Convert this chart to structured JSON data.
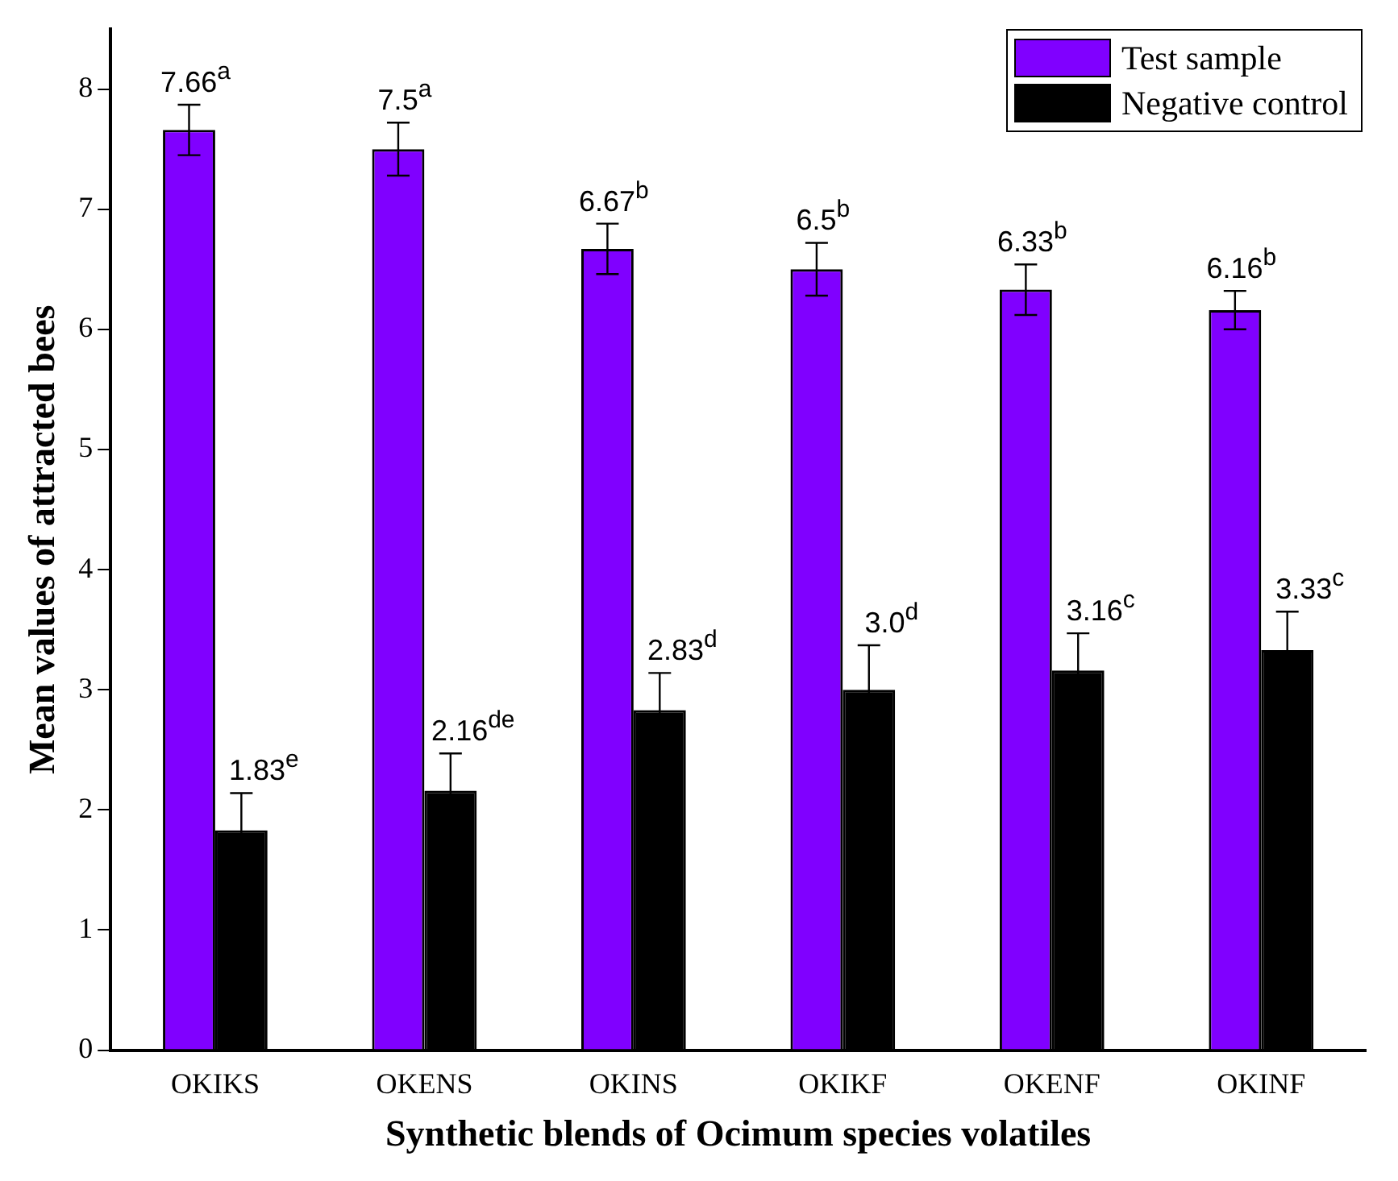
{
  "chart_data": {
    "type": "bar",
    "xlabel": "Synthetic blends of Ocimum species volatiles",
    "ylabel": "Mean values of attracted bees",
    "categories": [
      "OKIKS",
      "OKENS",
      "OKINS",
      "OKIKF",
      "OKENF",
      "OKINF"
    ],
    "series": [
      {
        "name": "Test sample",
        "color": "#8000ff",
        "values": [
          7.66,
          7.5,
          6.67,
          6.5,
          6.33,
          6.16
        ],
        "errors": [
          0.21,
          0.22,
          0.21,
          0.22,
          0.21,
          0.16
        ],
        "value_labels": [
          "7.66$^{a}$",
          "7.5$^{a}$",
          "6.67$^{b}$",
          "6.5$^{b}$",
          "6.33$^{b}$",
          "6.16$^{b}$"
        ]
      },
      {
        "name": "Negative control",
        "color": "#000000",
        "values": [
          1.83,
          2.16,
          2.83,
          3.0,
          3.16,
          3.33
        ],
        "errors": [
          0.31,
          0.31,
          0.31,
          0.37,
          0.31,
          0.32
        ],
        "value_labels": [
          "1.83$^{e}$",
          "2.16$^{de}$",
          "2.83$^{d}$",
          "3.0$^{d}$",
          "3.16$^{c}$",
          "3.33$^{c}$"
        ]
      }
    ],
    "ylim": [
      0,
      8.5
    ],
    "yticks": [
      0,
      1,
      2,
      3,
      4,
      5,
      6,
      7,
      8
    ],
    "grid": false,
    "legend": "top right"
  }
}
